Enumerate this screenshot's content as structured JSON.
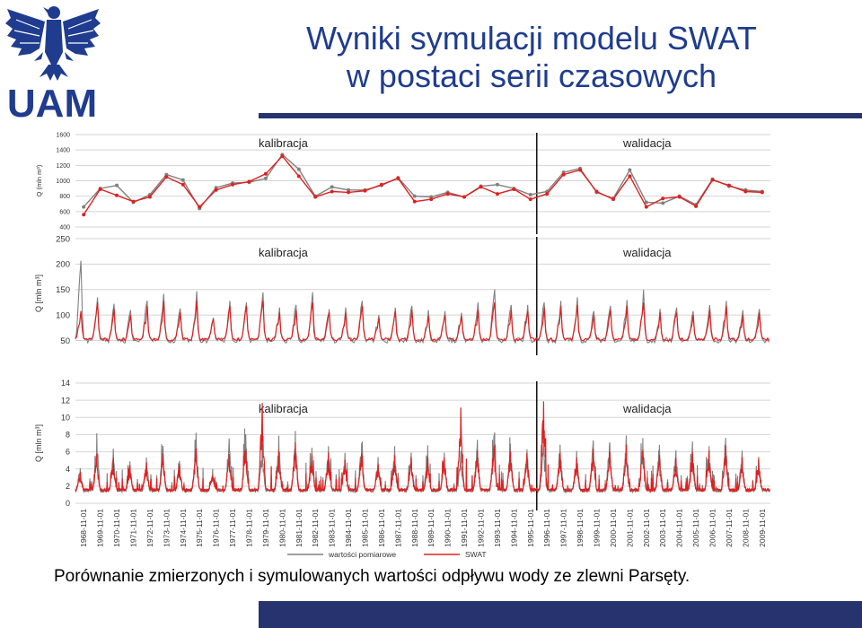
{
  "header": {
    "title_line1": "Wyniki symulacji modelu SWAT",
    "title_line2": "w postaci serii czasowych",
    "logo_text": "UAM",
    "colors": {
      "title": "#1f3c8f",
      "bar": "#27336e",
      "observed": "#808080",
      "simulated": "#e02020"
    }
  },
  "caption": "Porównanie zmierzonych i symulowanych wartości odpływu wody ze zlewni Parsęty.",
  "chart_data": [
    {
      "type": "line",
      "name": "annual",
      "ylabel": "Q (mln m³)",
      "ylim": [
        400,
        1600
      ],
      "yticks": [
        400,
        600,
        800,
        1000,
        1200,
        1400,
        1600
      ],
      "annotations": {
        "calibration": "kalibracja",
        "validation": "walidacja"
      },
      "split_year": 1995,
      "x": [
        1968,
        1969,
        1970,
        1971,
        1972,
        1973,
        1974,
        1975,
        1976,
        1977,
        1978,
        1979,
        1980,
        1981,
        1982,
        1983,
        1984,
        1985,
        1986,
        1987,
        1988,
        1989,
        1990,
        1991,
        1992,
        1993,
        1994,
        1995,
        1996,
        1997,
        1998,
        1999,
        2000,
        2001,
        2002,
        2003,
        2004,
        2005,
        2006,
        2007,
        2008,
        2009
      ],
      "series": [
        {
          "name": "wartości pomiarowe",
          "values": [
            660,
            900,
            940,
            720,
            820,
            1080,
            1010,
            640,
            910,
            970,
            980,
            1030,
            1340,
            1150,
            800,
            920,
            880,
            880,
            940,
            1040,
            800,
            790,
            850,
            790,
            930,
            950,
            900,
            820,
            860,
            1110,
            1160,
            850,
            770,
            1140,
            720,
            710,
            800,
            690,
            1020,
            930,
            880,
            860
          ]
        },
        {
          "name": "SWAT",
          "values": [
            560,
            890,
            810,
            730,
            790,
            1050,
            950,
            660,
            880,
            950,
            990,
            1090,
            1320,
            1060,
            790,
            860,
            850,
            870,
            950,
            1030,
            730,
            760,
            830,
            790,
            920,
            830,
            890,
            760,
            830,
            1080,
            1140,
            860,
            760,
            1060,
            660,
            770,
            790,
            670,
            1010,
            940,
            860,
            850
          ]
        }
      ]
    },
    {
      "type": "line",
      "name": "monthly",
      "ylabel": "Q [mln m³]",
      "ylim": [
        35,
        250
      ],
      "yticks": [
        50,
        100,
        150,
        200,
        250
      ],
      "annotations": {
        "calibration": "kalibracja",
        "validation": "walidacja"
      },
      "split_year": 1995,
      "baseline": 55,
      "observed_peaks": [
        207,
        135,
        122,
        110,
        128,
        142,
        113,
        147,
        95,
        128,
        125,
        145,
        115,
        120,
        145,
        112,
        115,
        128,
        100,
        115,
        118,
        110,
        108,
        105,
        125,
        150,
        120,
        120,
        125,
        128,
        135,
        108,
        118,
        130,
        150,
        112,
        115,
        108,
        120,
        128,
        110,
        112
      ],
      "simulated_peaks": [
        108,
        125,
        112,
        100,
        118,
        128,
        105,
        128,
        92,
        118,
        118,
        128,
        105,
        110,
        125,
        105,
        105,
        118,
        95,
        108,
        110,
        98,
        100,
        98,
        110,
        125,
        110,
        108,
        115,
        118,
        120,
        100,
        110,
        118,
        125,
        105,
        105,
        100,
        110,
        118,
        100,
        105
      ],
      "series": [
        {
          "name": "wartości pomiarowe"
        },
        {
          "name": "SWAT"
        }
      ]
    },
    {
      "type": "line",
      "name": "daily",
      "ylabel": "Q [mln m³]",
      "ylim": [
        0,
        14
      ],
      "yticks": [
        0,
        2,
        4,
        6,
        8,
        10,
        12,
        14
      ],
      "annotations": {
        "calibration": "kalibracja",
        "validation": "walidacja"
      },
      "split_year": 1995,
      "baseline": 1.7,
      "observed_peaks": [
        4.2,
        8.5,
        6.5,
        5.0,
        5.5,
        6.8,
        5.2,
        8.3,
        4.0,
        7.8,
        8.2,
        7.0,
        8.0,
        8.8,
        6.5,
        7.0,
        6.0,
        7.2,
        5.5,
        6.8,
        6.2,
        7.0,
        6.2,
        6.5,
        7.5,
        8.2,
        7.2,
        6.5,
        7.3,
        7.2,
        6.3,
        7.6,
        7.4,
        8.2,
        7.8,
        6.8,
        6.2,
        7.6,
        7.0,
        7.8,
        6.2,
        5.5
      ],
      "simulated_peaks": [
        3.8,
        6.0,
        5.5,
        4.5,
        5.0,
        5.8,
        4.6,
        6.5,
        3.6,
        6.0,
        6.5,
        11.8,
        6.2,
        7.2,
        5.8,
        6.0,
        5.2,
        6.0,
        4.8,
        5.8,
        5.5,
        5.4,
        5.6,
        11.3,
        6.2,
        6.8,
        6.2,
        6.0,
        12.0,
        6.2,
        5.6,
        6.4,
        6.2,
        7.0,
        6.5,
        5.8,
        5.4,
        6.2,
        6.2,
        6.8,
        5.6,
        5.2
      ],
      "x_tick_labels": [
        "1968-11-01",
        "1969-11-01",
        "1970-11-01",
        "1971-11-01",
        "1972-11-01",
        "1973-11-01",
        "1974-11-01",
        "1975-11-01",
        "1976-11-01",
        "1977-11-01",
        "1978-11-01",
        "1979-11-01",
        "1980-11-01",
        "1981-11-01",
        "1982-11-01",
        "1983-11-01",
        "1984-11-01",
        "1985-11-01",
        "1986-11-01",
        "1987-11-01",
        "1988-11-01",
        "1989-11-01",
        "1990-11-01",
        "1991-11-01",
        "1992-11-01",
        "1993-11-01",
        "1994-11-01",
        "1995-11-01",
        "1996-11-01",
        "1997-11-01",
        "1998-11-01",
        "1999-11-01",
        "2000-11-01",
        "2001-11-01",
        "2002-11-01",
        "2003-11-01",
        "2004-11-01",
        "2005-11-01",
        "2006-11-01",
        "2007-11-01",
        "2008-11-01",
        "2009-11-01"
      ],
      "legend": [
        "wartości pomiarowe",
        "SWAT"
      ],
      "legend_position": "bottom",
      "series": [
        {
          "name": "wartości pomiarowe"
        },
        {
          "name": "SWAT"
        }
      ]
    }
  ]
}
